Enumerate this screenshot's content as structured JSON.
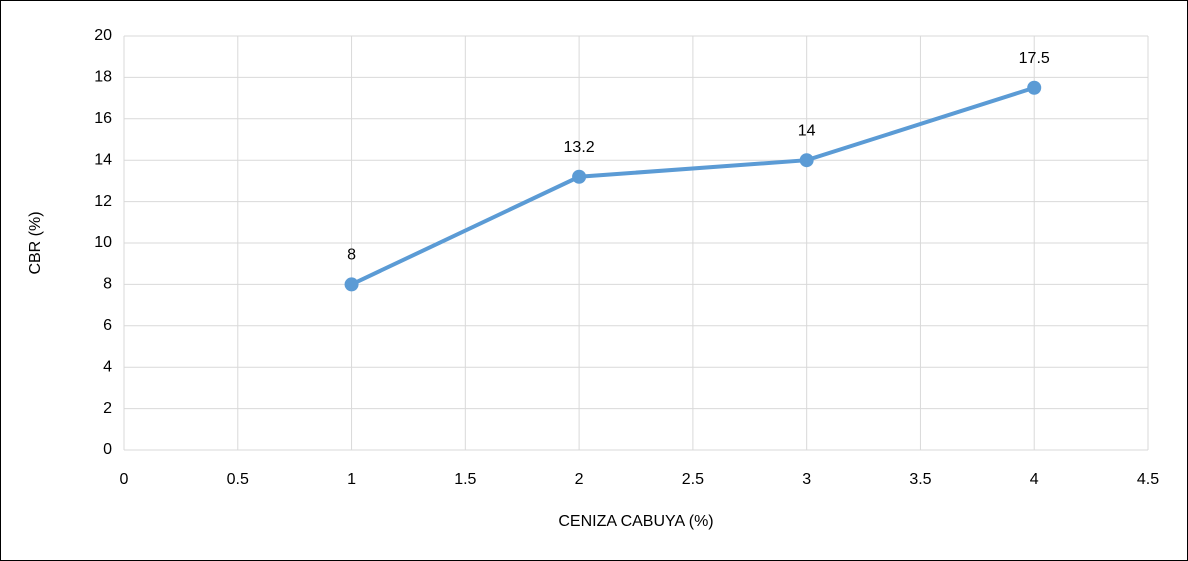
{
  "chart_data": {
    "type": "line",
    "x_label": "CENIZA CABUYA (%)",
    "y_label": "CBR (%)",
    "x": [
      1,
      2,
      3,
      4
    ],
    "series": [
      {
        "color": "#5b9bd5",
        "values": [
          8,
          13.2,
          14,
          17.5
        ]
      }
    ],
    "xlim": [
      0,
      4.5
    ],
    "xticks": [
      0,
      0.5,
      1,
      1.5,
      2,
      2.5,
      3,
      3.5,
      4,
      4.5
    ],
    "ylim": [
      0,
      20
    ],
    "yticks": [
      0,
      2,
      4,
      6,
      8,
      10,
      12,
      14,
      16,
      18,
      20
    ],
    "grid": true
  }
}
